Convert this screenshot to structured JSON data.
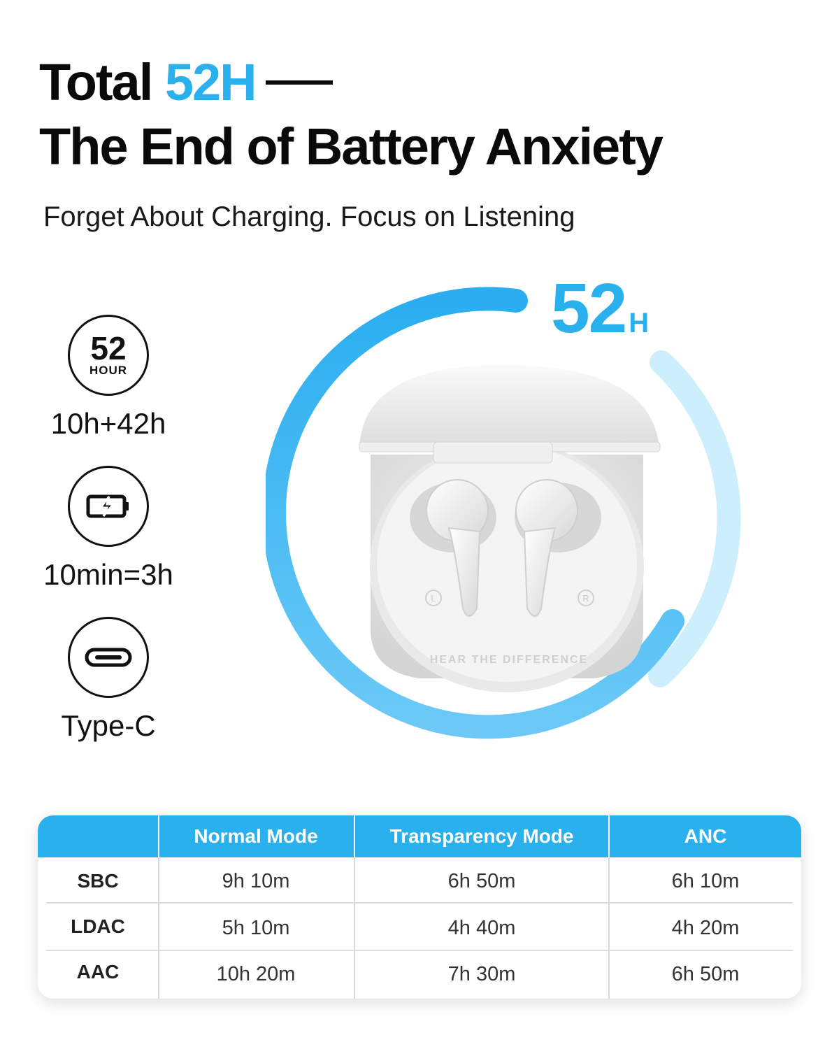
{
  "colors": {
    "accent": "#2bb0ee",
    "accent_light": "#cdeefc",
    "text": "#0a0a0a"
  },
  "headline": {
    "prefix": "Total",
    "highlight": "52H",
    "line2": "The End of Battery Anxiety"
  },
  "subtitle": "Forget About Charging. Focus on Listening",
  "features": [
    {
      "icon": "52-hour-badge-icon",
      "badge_number": "52",
      "badge_unit": "HOUR",
      "label": "10h+42h"
    },
    {
      "icon": "fast-charge-battery-icon",
      "label": "10min=3h"
    },
    {
      "icon": "usb-type-c-icon",
      "label": "Type-C"
    }
  ],
  "battery_ring": {
    "number": "52",
    "unit": "H"
  },
  "case_engraving": {
    "left_mark": "L",
    "right_mark": "R",
    "text": "HEAR THE DIFFERENCE"
  },
  "table": {
    "columns": [
      "",
      "Normal Mode",
      "Transparency Mode",
      "ANC"
    ],
    "rows": [
      {
        "codec": "SBC",
        "values": [
          "9h 10m",
          "6h 50m",
          "6h 10m"
        ]
      },
      {
        "codec": "LDAC",
        "values": [
          "5h 10m",
          "4h 40m",
          "4h 20m"
        ]
      },
      {
        "codec": "AAC",
        "values": [
          "10h 20m",
          "7h 30m",
          "6h 50m"
        ]
      }
    ]
  }
}
